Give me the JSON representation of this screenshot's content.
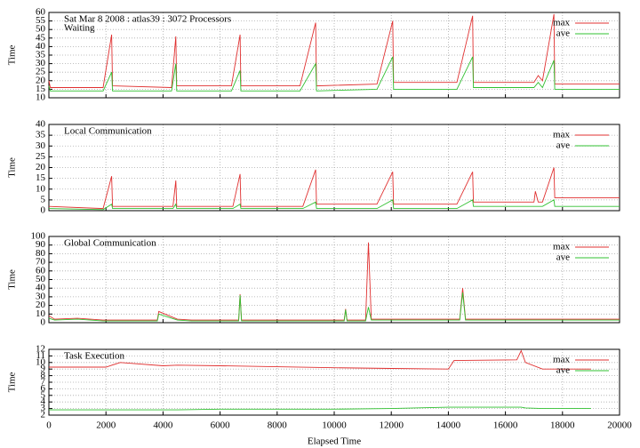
{
  "chart_data": [
    {
      "type": "line",
      "title": "Sat Mar 8 2008 : atlas39 : 3072 Processors",
      "subtitle": "Waiting",
      "ylabel": "Time",
      "x": [
        0,
        50,
        100,
        1900,
        2200,
        2230,
        4300,
        4450,
        4480,
        6400,
        6700,
        6730,
        8800,
        9350,
        9380,
        11500,
        12050,
        12080,
        14300,
        14850,
        14880,
        17000,
        17150,
        17300,
        17700,
        17730,
        20000
      ],
      "series": [
        {
          "name": "max",
          "color": "#e03030",
          "values": [
            20,
            16,
            16,
            16,
            47,
            17,
            16,
            46,
            17,
            17,
            47,
            17,
            17,
            54,
            17,
            18,
            55,
            19,
            19,
            58,
            19,
            19,
            23,
            20,
            59,
            18,
            18
          ]
        },
        {
          "name": "ave",
          "color": "#30c030",
          "values": [
            17,
            14,
            14,
            14,
            25,
            14,
            14,
            30,
            14,
            14,
            26,
            14,
            14,
            30,
            14,
            15,
            34,
            15,
            15,
            34,
            16,
            16,
            19,
            16,
            32,
            15,
            15
          ]
        }
      ],
      "xlim": [
        0,
        20000
      ],
      "xticks": [
        0,
        2000,
        4000,
        6000,
        8000,
        10000,
        12000,
        14000,
        16000,
        18000,
        20000
      ],
      "ylim": [
        10,
        60
      ],
      "yticks": [
        10,
        15,
        20,
        25,
        30,
        35,
        40,
        45,
        50,
        55,
        60
      ],
      "grid": true,
      "legend": "upper right"
    },
    {
      "type": "line",
      "title": "Local Communication",
      "ylabel": "Time",
      "x": [
        0,
        1900,
        2200,
        2230,
        4350,
        4450,
        4480,
        6450,
        6700,
        6730,
        8900,
        9350,
        9380,
        11500,
        12050,
        12080,
        14300,
        14850,
        14880,
        17000,
        17050,
        17150,
        17300,
        17700,
        17730,
        20000
      ],
      "series": [
        {
          "name": "max",
          "color": "#e03030",
          "values": [
            2,
            1,
            16,
            2,
            2,
            14,
            2,
            2,
            17,
            2,
            2,
            19,
            3,
            3,
            18,
            3,
            3,
            18,
            4,
            4,
            9,
            4,
            4,
            20,
            6,
            6
          ]
        },
        {
          "name": "ave",
          "color": "#30c030",
          "values": [
            1,
            0.5,
            3,
            1,
            1,
            3,
            1,
            1,
            3,
            1,
            1,
            4,
            1,
            1,
            5,
            1,
            1,
            5,
            2,
            2,
            2,
            2,
            2,
            5,
            2,
            2
          ]
        }
      ],
      "xlim": [
        0,
        20000
      ],
      "xticks": [
        0,
        2000,
        4000,
        6000,
        8000,
        10000,
        12000,
        14000,
        16000,
        18000,
        20000
      ],
      "ylim": [
        0,
        40
      ],
      "yticks": [
        0,
        5,
        10,
        15,
        20,
        25,
        30,
        35,
        40
      ],
      "grid": true,
      "legend": "upper right"
    },
    {
      "type": "line",
      "title": "Global Communication",
      "ylabel": "Time",
      "x": [
        0,
        200,
        1000,
        1900,
        3800,
        3850,
        4500,
        5000,
        6650,
        6700,
        6750,
        10350,
        10400,
        10450,
        11100,
        11200,
        11300,
        14400,
        14500,
        14600,
        17000,
        20000
      ],
      "series": [
        {
          "name": "max",
          "color": "#e03030",
          "values": [
            8,
            4,
            5,
            3,
            3,
            13,
            4,
            3,
            3,
            33,
            3,
            3,
            16,
            3,
            3,
            93,
            4,
            4,
            40,
            4,
            4,
            4
          ]
        },
        {
          "name": "ave",
          "color": "#30c030",
          "values": [
            5,
            3,
            4,
            2,
            2,
            10,
            3,
            2,
            2,
            32,
            2,
            2,
            15,
            2,
            2,
            18,
            3,
            3,
            35,
            3,
            3,
            3
          ]
        }
      ],
      "xlim": [
        0,
        20000
      ],
      "xticks": [
        0,
        2000,
        4000,
        6000,
        8000,
        10000,
        12000,
        14000,
        16000,
        18000,
        20000
      ],
      "ylim": [
        0,
        100
      ],
      "yticks": [
        0,
        10,
        20,
        30,
        40,
        50,
        60,
        70,
        80,
        90,
        100
      ],
      "grid": true,
      "legend": "upper right"
    },
    {
      "type": "line",
      "title": "Task Execution",
      "ylabel": "Time",
      "xlabel": "Elapsed Time",
      "x": [
        0,
        2000,
        2500,
        4000,
        4500,
        6000,
        10000,
        12000,
        14000,
        14200,
        16400,
        16550,
        16700,
        17300,
        19000
      ],
      "series": [
        {
          "name": "max",
          "color": "#e03030",
          "values": [
            9.3,
            9.3,
            10,
            9.5,
            9.6,
            9.5,
            9.2,
            9.1,
            9.0,
            10.3,
            10.4,
            11.8,
            10,
            9,
            9
          ]
        },
        {
          "name": "ave",
          "color": "#30c030",
          "values": [
            2.8,
            2.8,
            2.8,
            2.8,
            2.8,
            2.9,
            2.9,
            3.0,
            3.2,
            3.2,
            3.2,
            3.2,
            3.1,
            3.0,
            3.0
          ]
        }
      ],
      "xlim": [
        0,
        20000
      ],
      "xticks": [
        0,
        2000,
        4000,
        6000,
        8000,
        10000,
        12000,
        14000,
        16000,
        18000,
        20000
      ],
      "ylim": [
        2,
        12
      ],
      "yticks": [
        2,
        3,
        4,
        5,
        6,
        7,
        8,
        9,
        10,
        11,
        12
      ],
      "grid": true,
      "legend": "upper right"
    }
  ]
}
